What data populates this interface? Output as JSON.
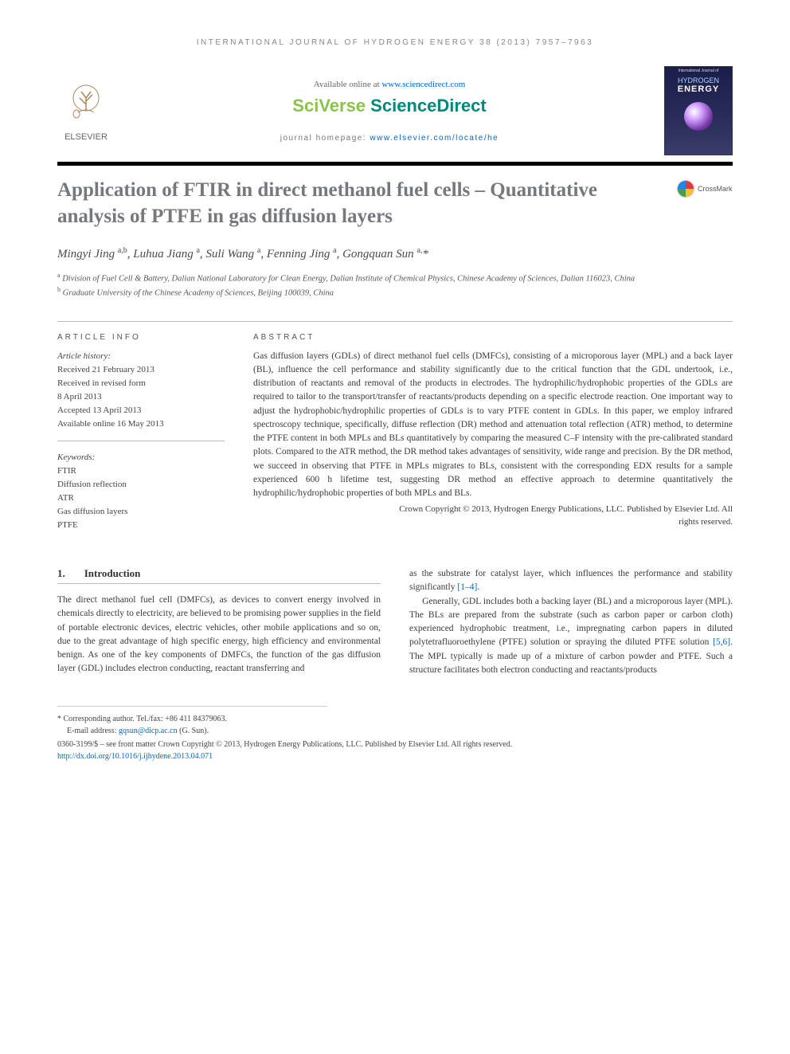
{
  "running_head": "INTERNATIONAL JOURNAL OF HYDROGEN ENERGY 38 (2013) 7957–7963",
  "header": {
    "elsevier": "ELSEVIER",
    "available_prefix": "Available online at ",
    "available_link": "www.sciencedirect.com",
    "sciverse_sci": "SciVerse ",
    "sciverse_direct": "ScienceDirect",
    "homepage_prefix": "journal homepage: ",
    "homepage_link": "www.elsevier.com/locate/he",
    "cover": {
      "top": "International Journal of",
      "line1": "HYDROGEN",
      "line2": "ENERGY"
    }
  },
  "title": "Application of FTIR in direct methanol fuel cells – Quantitative analysis of PTFE in gas diffusion layers",
  "crossmark": "CrossMark",
  "authors_html": "Mingyi Jing <sup>a,b</sup>, Luhua Jiang <sup>a</sup>, Suli Wang <sup>a</sup>, Fenning Jing <sup>a</sup>, Gongquan Sun <sup>a,</sup>*",
  "affiliations": {
    "a": "Division of Fuel Cell & Battery, Dalian National Laboratory for Clean Energy, Dalian Institute of Chemical Physics, Chinese Academy of Sciences, Dalian 116023, China",
    "b": "Graduate University of the Chinese Academy of Sciences, Beijing 100039, China"
  },
  "article_info_head": "ARTICLE INFO",
  "abstract_head": "ABSTRACT",
  "history": {
    "label": "Article history:",
    "received": "Received 21 February 2013",
    "revised1": "Received in revised form",
    "revised2": "8 April 2013",
    "accepted": "Accepted 13 April 2013",
    "online": "Available online 16 May 2013"
  },
  "keywords": {
    "label": "Keywords:",
    "items": [
      "FTIR",
      "Diffusion reflection",
      "ATR",
      "Gas diffusion layers",
      "PTFE"
    ]
  },
  "abstract": "Gas diffusion layers (GDLs) of direct methanol fuel cells (DMFCs), consisting of a microporous layer (MPL) and a back layer (BL), influence the cell performance and stability significantly due to the critical function that the GDL undertook, i.e., distribution of reactants and removal of the products in electrodes. The hydrophilic/hydrophobic properties of the GDLs are required to tailor to the transport/transfer of reactants/products depending on a specific electrode reaction. One important way to adjust the hydrophobic/hydrophilic properties of GDLs is to vary PTFE content in GDLs. In this paper, we employ infrared spectroscopy technique, specifically, diffuse reflection (DR) method and attenuation total reflection (ATR) method, to determine the PTFE content in both MPLs and BLs quantitatively by comparing the measured C–F intensity with the pre-calibrated standard plots. Compared to the ATR method, the DR method takes advantages of sensitivity, wide range and precision. By the DR method, we succeed in observing that PTFE in MPLs migrates to BLs, consistent with the corresponding EDX results for a sample experienced 600 h lifetime test, suggesting DR method an effective approach to determine quantitatively the hydrophilic/hydrophobic properties of both MPLs and BLs.",
  "abstract_copyright1": "Crown Copyright © 2013, Hydrogen Energy Publications, LLC. Published by Elsevier Ltd. All",
  "abstract_copyright2": "rights reserved.",
  "section1": {
    "num": "1.",
    "title": "Introduction"
  },
  "body": {
    "col1_p1": "The direct methanol fuel cell (DMFCs), as devices to convert energy involved in chemicals directly to electricity, are believed to be promising power supplies in the field of portable electronic devices, electric vehicles, other mobile applications and so on, due to the great advantage of high specific energy, high efficiency and environmental benign. As one of the key components of DMFCs, the function of the gas diffusion layer (GDL) includes electron conducting, reactant transferring and",
    "col2_p1_a": "as the substrate for catalyst layer, which influences the performance and stability significantly ",
    "col2_p1_ref": "[1–4]",
    "col2_p1_b": ".",
    "col2_p2_a": "Generally, GDL includes both a backing layer (BL) and a microporous layer (MPL). The BLs are prepared from the substrate (such as carbon paper or carbon cloth) experienced hydrophobic treatment, i.e., impregnating carbon papers in diluted polytetrafluoroethylene (PTFE) solution or spraying the diluted PTFE solution ",
    "col2_p2_ref": "[5,6]",
    "col2_p2_b": ". The MPL typically is made up of a mixture of carbon powder and PTFE. Such a structure facilitates both electron conducting and reactants/products"
  },
  "footnotes": {
    "corr": "* Corresponding author. Tel./fax: +86 411 84379063.",
    "email_label": "E-mail address: ",
    "email": "gqsun@dicp.ac.cn",
    "email_who": " (G. Sun)."
  },
  "bottom": {
    "line1": "0360-3199/$ – see front matter Crown Copyright © 2013, Hydrogen Energy Publications, LLC. Published by Elsevier Ltd. All rights reserved.",
    "doi": "http://dx.doi.org/10.1016/j.ijhydene.2013.04.071"
  },
  "colors": {
    "title_gray": "#75787d",
    "link_blue": "#0066cc",
    "rule": "#bbbbbb",
    "cover_bg": "#1a1d4a"
  }
}
